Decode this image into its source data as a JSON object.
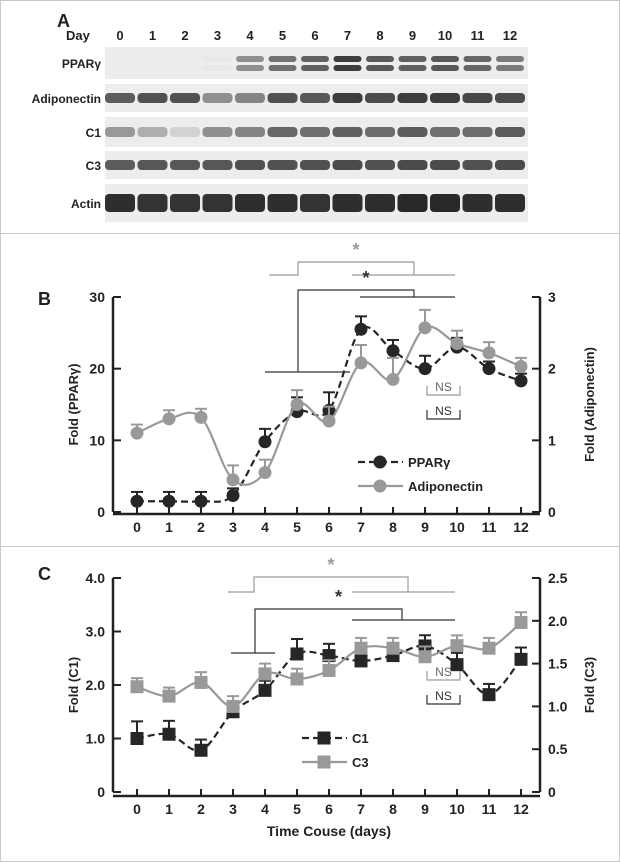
{
  "panelA": {
    "letter": "A",
    "day_label": "Day",
    "days": [
      "0",
      "1",
      "2",
      "3",
      "4",
      "5",
      "6",
      "7",
      "8",
      "9",
      "10",
      "11",
      "12"
    ],
    "rows": [
      {
        "label": "PPARγ",
        "intensity": [
          0.02,
          0.02,
          0.03,
          0.12,
          0.65,
          0.75,
          0.8,
          0.9,
          0.82,
          0.8,
          0.82,
          0.78,
          0.72
        ]
      },
      {
        "label": "Adiponectin",
        "intensity": [
          0.7,
          0.75,
          0.75,
          0.45,
          0.5,
          0.75,
          0.72,
          0.85,
          0.78,
          0.85,
          0.85,
          0.8,
          0.78
        ]
      },
      {
        "label": "C1",
        "intensity": [
          0.4,
          0.3,
          0.12,
          0.45,
          0.5,
          0.65,
          0.6,
          0.68,
          0.62,
          0.7,
          0.6,
          0.62,
          0.7
        ]
      },
      {
        "label": "C3",
        "intensity": [
          0.7,
          0.72,
          0.72,
          0.72,
          0.75,
          0.75,
          0.75,
          0.78,
          0.75,
          0.78,
          0.78,
          0.75,
          0.78
        ]
      },
      {
        "label": "Actin",
        "intensity": [
          0.92,
          0.9,
          0.9,
          0.9,
          0.92,
          0.92,
          0.9,
          0.92,
          0.92,
          0.95,
          0.95,
          0.92,
          0.92
        ]
      }
    ]
  },
  "chart_data": [
    {
      "panel": "B",
      "type": "line",
      "x": [
        0,
        1,
        2,
        3,
        4,
        5,
        6,
        7,
        8,
        9,
        10,
        11,
        12
      ],
      "xlim": [
        0,
        12
      ],
      "ylabel": "Fold (PPARγ)",
      "ylim": [
        0,
        30
      ],
      "yticks": [
        "0",
        "10",
        "20",
        "30"
      ],
      "y2label": "Fold (Adiponectin)",
      "y2lim": [
        0,
        3
      ],
      "y2ticks": [
        "0",
        "1",
        "2",
        "3"
      ],
      "series": [
        {
          "name": "PPARγ",
          "axis": "left",
          "color": "#262626",
          "style": "dashed",
          "marker": "circle",
          "values": [
            1.5,
            1.5,
            1.5,
            2.3,
            9.8,
            14.0,
            14.2,
            25.5,
            22.5,
            20.0,
            23.0,
            20.0,
            18.3
          ],
          "errors": [
            1.3,
            1.3,
            1.3,
            1.0,
            1.8,
            2.0,
            2.5,
            1.8,
            1.5,
            1.8,
            1.3,
            1.0,
            1.0
          ]
        },
        {
          "name": "Adiponectin",
          "axis": "right",
          "color": "#999999",
          "style": "solid",
          "marker": "circle",
          "values": [
            1.1,
            1.3,
            1.32,
            0.45,
            0.55,
            1.5,
            1.27,
            2.08,
            1.85,
            2.57,
            2.35,
            2.22,
            2.03
          ],
          "errors": [
            0.12,
            0.12,
            0.12,
            0.2,
            0.18,
            0.2,
            0.2,
            0.25,
            0.3,
            0.25,
            0.18,
            0.15,
            0.12
          ]
        }
      ],
      "annotations": {
        "star": "*",
        "ns": "NS"
      }
    },
    {
      "panel": "C",
      "type": "line",
      "x": [
        0,
        1,
        2,
        3,
        4,
        5,
        6,
        7,
        8,
        9,
        10,
        11,
        12
      ],
      "xlim": [
        0,
        12
      ],
      "xlabel": "Time Couse (days)",
      "ylabel": "Fold (C1)",
      "ylim": [
        0,
        4
      ],
      "yticks": [
        "0",
        "1.0",
        "2.0",
        "3.0",
        "4.0"
      ],
      "y2label": "Fold (C3)",
      "y2lim": [
        0,
        2.5
      ],
      "y2ticks": [
        "0",
        "0.5",
        "1.0",
        "1.5",
        "2.0",
        "2.5"
      ],
      "series": [
        {
          "name": "C1",
          "axis": "left",
          "color": "#262626",
          "style": "dashed",
          "marker": "square",
          "values": [
            1.0,
            1.08,
            0.78,
            1.5,
            1.9,
            2.58,
            2.55,
            2.45,
            2.55,
            2.73,
            2.38,
            1.82,
            2.48
          ],
          "errors": [
            0.32,
            0.25,
            0.2,
            0.2,
            0.18,
            0.28,
            0.22,
            0.12,
            0.15,
            0.2,
            0.22,
            0.2,
            0.22
          ]
        },
        {
          "name": "C3",
          "axis": "right",
          "color": "#999999",
          "style": "solid",
          "marker": "square",
          "values": [
            1.23,
            1.12,
            1.28,
            1.0,
            1.38,
            1.32,
            1.42,
            1.68,
            1.68,
            1.58,
            1.71,
            1.68,
            1.98
          ],
          "errors": [
            0.1,
            0.1,
            0.12,
            0.12,
            0.12,
            0.12,
            0.12,
            0.12,
            0.12,
            0.12,
            0.12,
            0.12,
            0.12
          ]
        }
      ],
      "annotations": {
        "star": "*",
        "ns": "NS"
      }
    }
  ]
}
